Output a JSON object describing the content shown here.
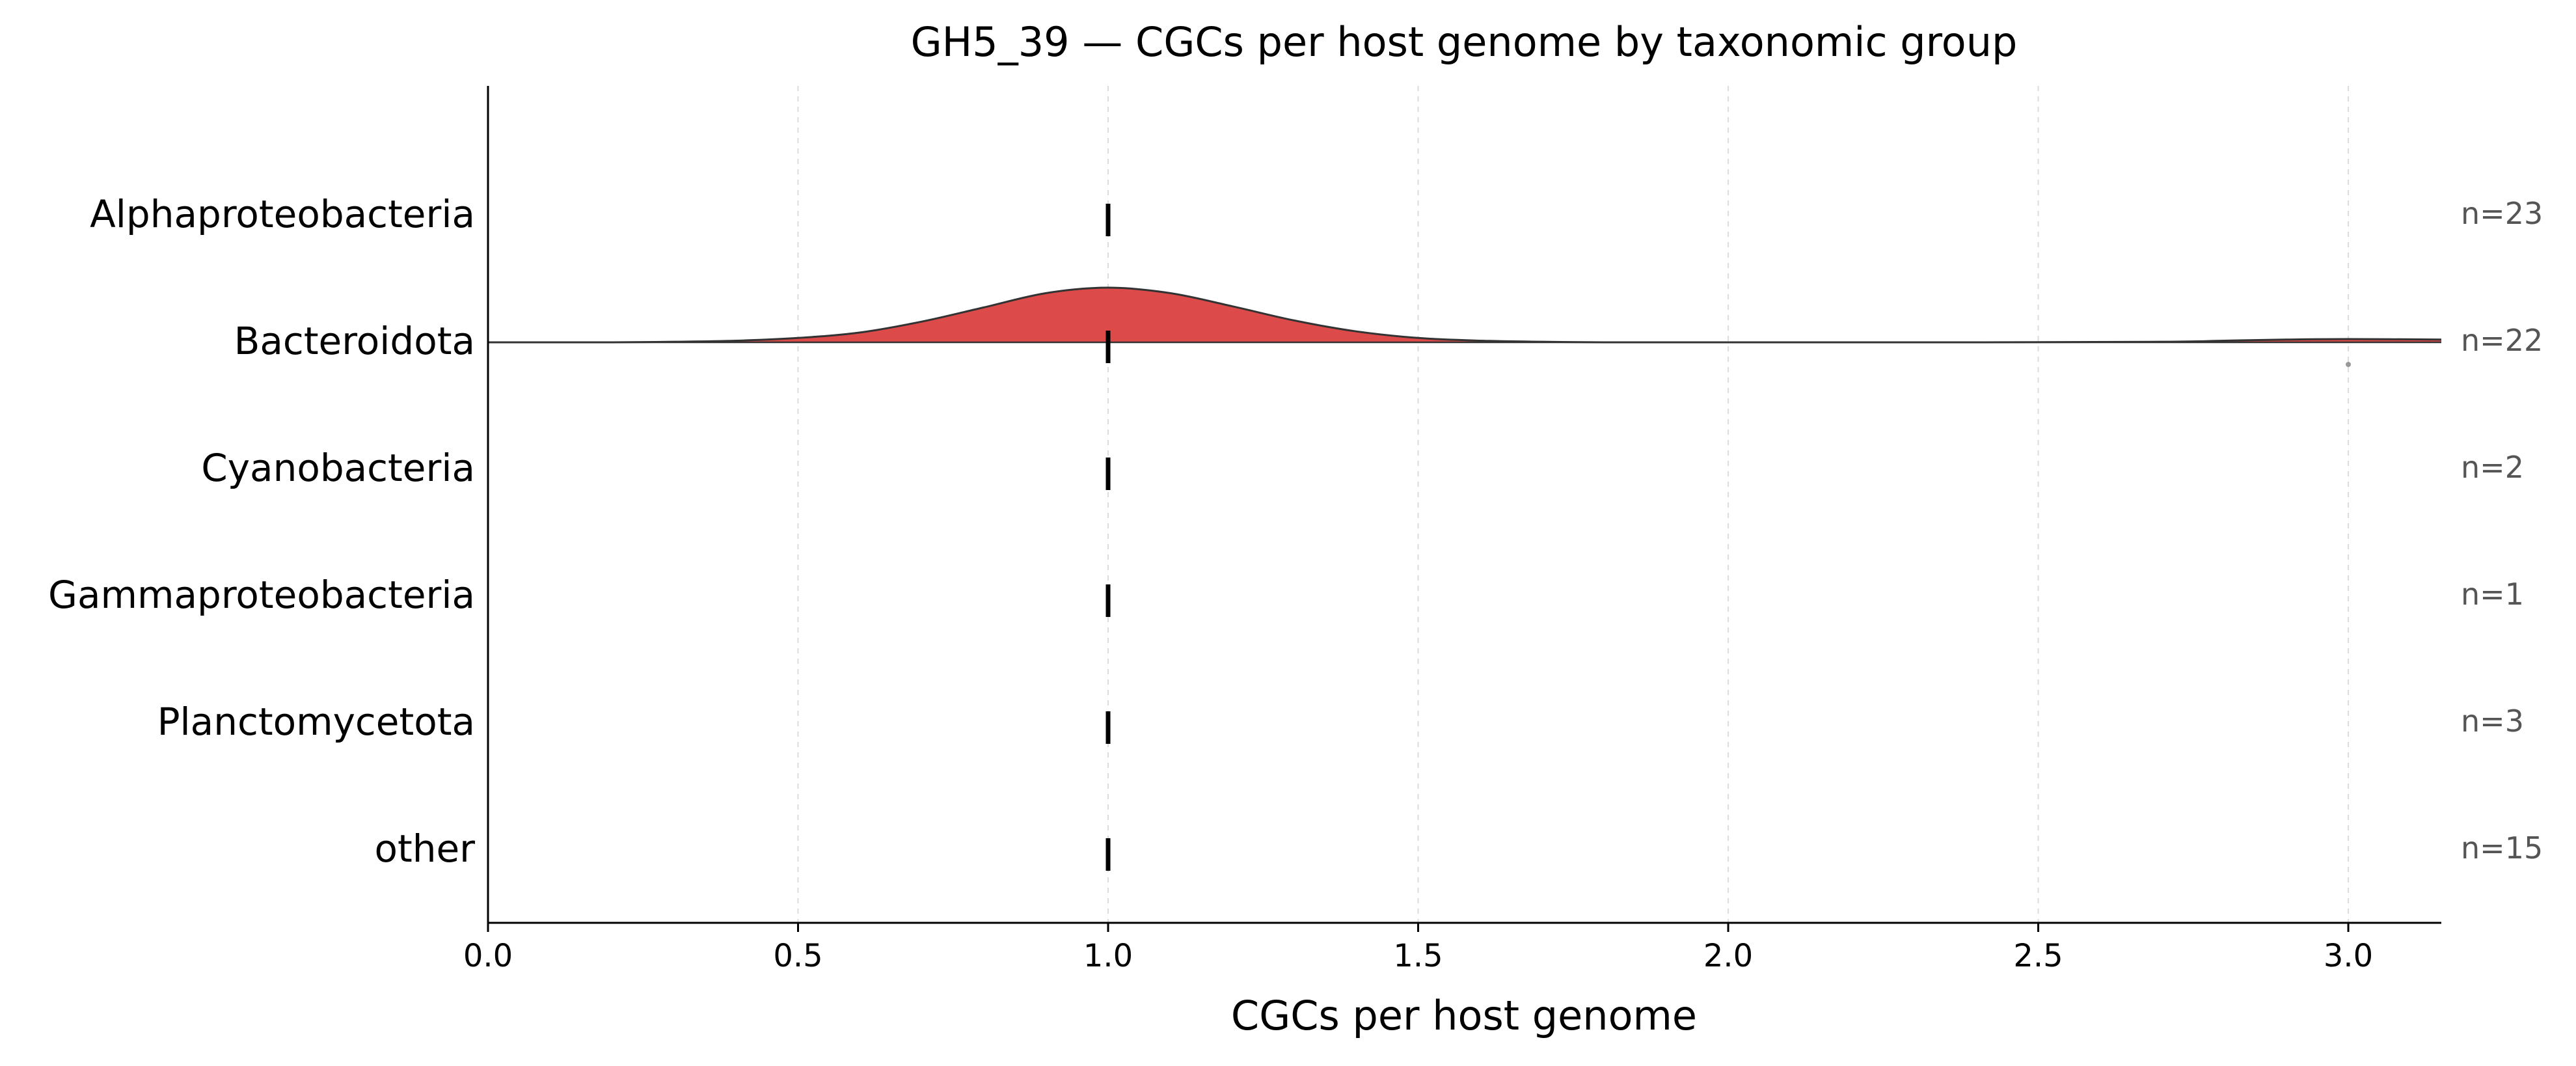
{
  "chart_data": {
    "type": "ridgeline",
    "title": "GH5_39 — CGCs per host genome by taxonomic group",
    "xlabel": "CGCs per host genome",
    "ylabel": "",
    "xlim": [
      0,
      3.15
    ],
    "x_ticks": [
      "0.0",
      "0.5",
      "1.0",
      "1.5",
      "2.0",
      "2.5",
      "3.0"
    ],
    "x_tick_values": [
      0,
      0.5,
      1.0,
      1.5,
      2.0,
      2.5,
      3.0
    ],
    "grid": "vertical dashed",
    "colors": {
      "density_fill": "#dd4a4a",
      "density_stroke": "#333333",
      "median": "#000000",
      "count_text": "#555555",
      "outlier": "#999999"
    },
    "groups": [
      {
        "name": "Alphaproteobacteria",
        "n": 23,
        "n_label": "n=23",
        "median": 1.0,
        "density": null
      },
      {
        "name": "Bacteroidota",
        "n": 22,
        "n_label": "n=22",
        "median": 1.0,
        "density": {
          "peak": [
            1.0,
            1.0
          ],
          "x": [
            0.0,
            0.2,
            0.3,
            0.4,
            0.5,
            0.6,
            0.7,
            0.8,
            0.9,
            1.0,
            1.1,
            1.2,
            1.3,
            1.4,
            1.5,
            1.6,
            1.7,
            1.8,
            2.0,
            2.4,
            2.7,
            2.8,
            2.9,
            3.0,
            3.15
          ],
          "y": [
            0.0,
            0.0,
            0.01,
            0.03,
            0.08,
            0.18,
            0.38,
            0.64,
            0.9,
            1.0,
            0.9,
            0.66,
            0.4,
            0.2,
            0.08,
            0.03,
            0.01,
            0.0,
            0.0,
            0.0,
            0.01,
            0.03,
            0.05,
            0.06,
            0.05
          ]
        },
        "outliers": [
          3.0
        ]
      },
      {
        "name": "Cyanobacteria",
        "n": 2,
        "n_label": "n=2",
        "median": 1.0,
        "density": null
      },
      {
        "name": "Gammaproteobacteria",
        "n": 1,
        "n_label": "n=1",
        "median": 1.0,
        "density": null
      },
      {
        "name": "Planctomycetota",
        "n": 3,
        "n_label": "n=3",
        "median": 1.0,
        "density": null
      },
      {
        "name": "other",
        "n": 15,
        "n_label": "n=15",
        "median": 1.0,
        "density": null
      }
    ]
  }
}
